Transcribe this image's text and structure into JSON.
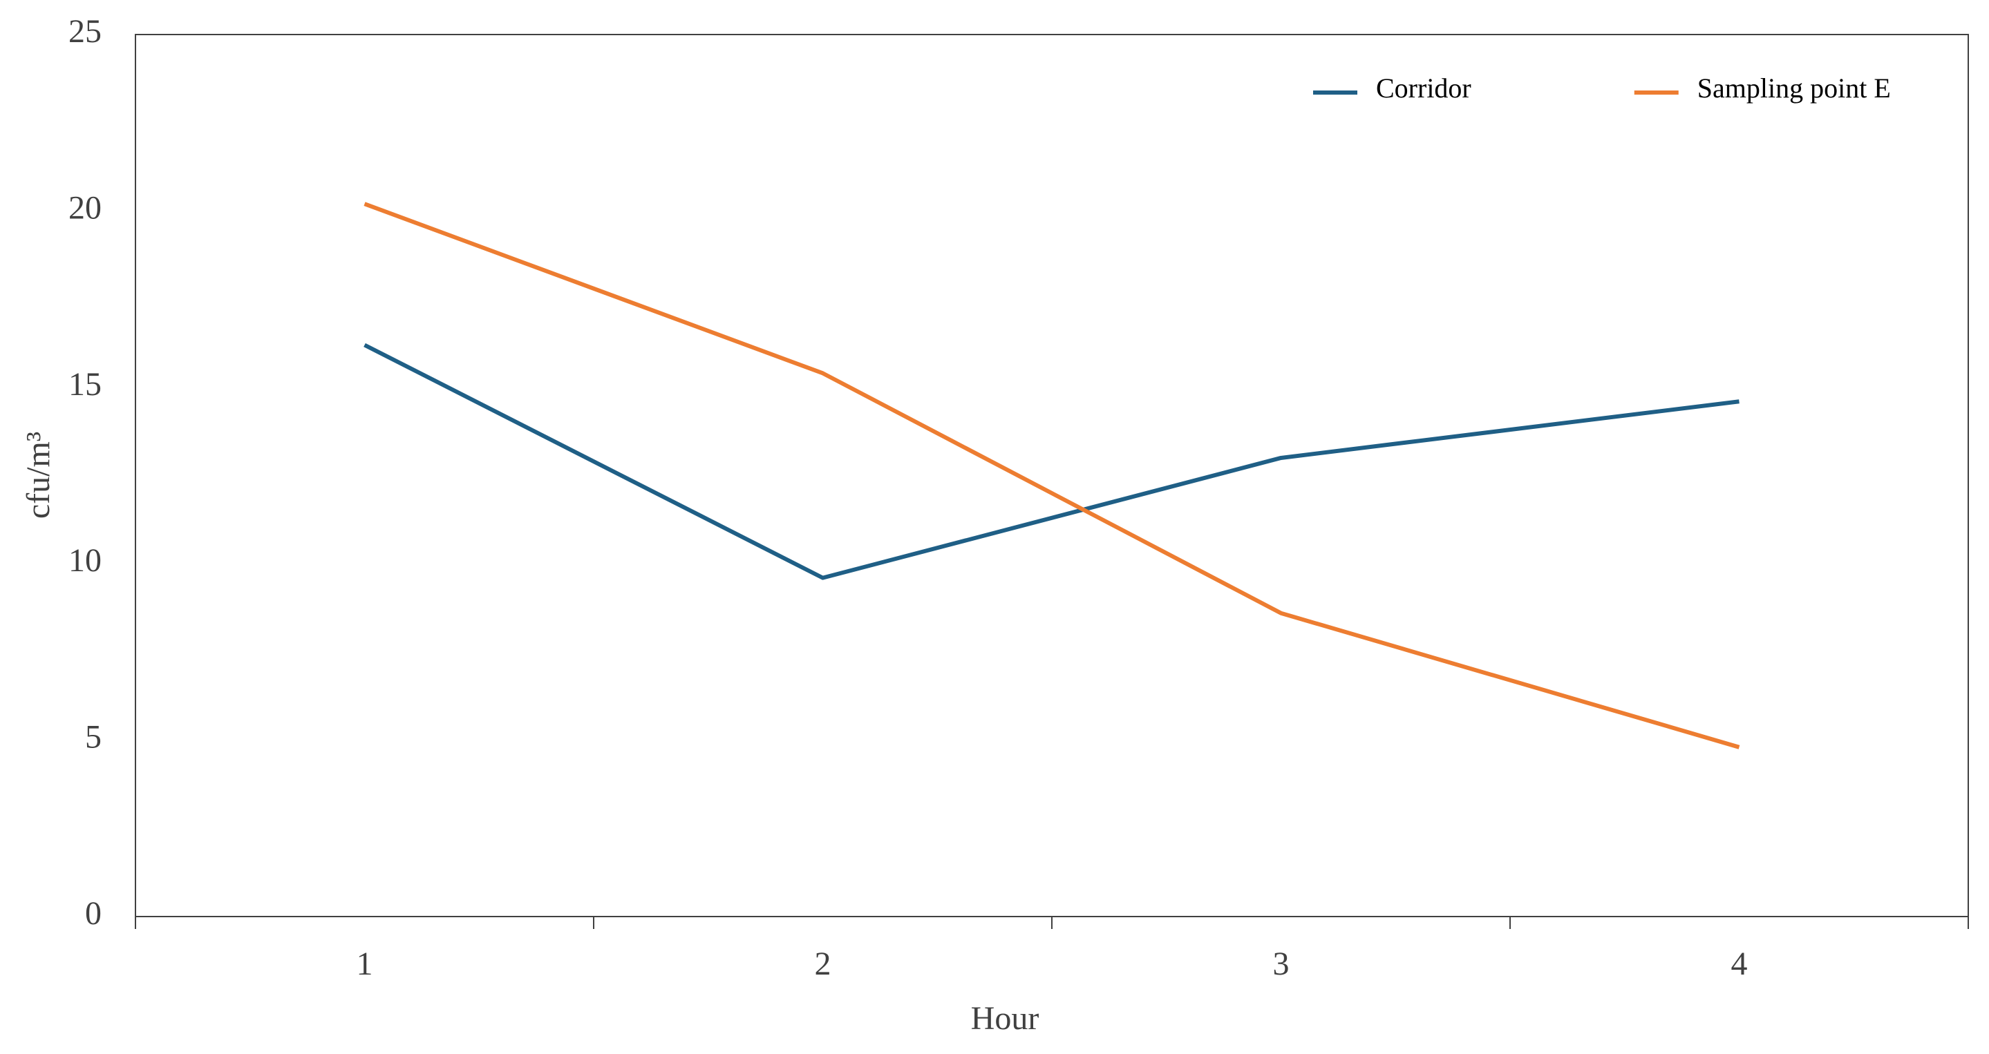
{
  "chart_data": {
    "type": "line",
    "x_label": "Hour",
    "y_label": "cfu/m³",
    "categories": [
      "1",
      "2",
      "3",
      "4"
    ],
    "series": [
      {
        "name": "Corridor",
        "color": "#1f5f86",
        "values": [
          16.2,
          9.6,
          13.0,
          14.6
        ]
      },
      {
        "name": "Sampling point E",
        "color": "#ed7d31",
        "values": [
          20.2,
          15.4,
          8.6,
          4.8
        ]
      }
    ],
    "ylim": [
      0,
      25
    ],
    "yticks": [
      0,
      5,
      10,
      15,
      20,
      25
    ],
    "grid": false,
    "legend": "upper right"
  }
}
